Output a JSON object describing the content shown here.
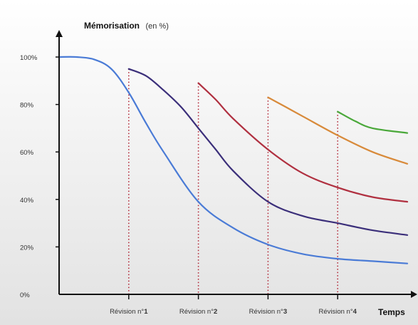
{
  "chart_data": {
    "type": "line",
    "ylabel": "Mémorisation",
    "ylabel_unit": "(en %)",
    "xlabel": "Temps",
    "ylim": [
      0,
      100
    ],
    "y_ticks": [
      "0%",
      "20%",
      "40%",
      "60%",
      "80%",
      "100%"
    ],
    "y_tick_values": [
      0,
      20,
      40,
      60,
      80,
      100
    ],
    "xlim": [
      0,
      5
    ],
    "grid": false,
    "revisions": [
      {
        "x": 1,
        "prefix": "Révision n°",
        "num": "1"
      },
      {
        "x": 2,
        "prefix": "Révision n°",
        "num": "2"
      },
      {
        "x": 3,
        "prefix": "Révision n°",
        "num": "3"
      },
      {
        "x": 4,
        "prefix": "Révision n°",
        "num": "4"
      }
    ],
    "series": [
      {
        "color": "#4a7bd6",
        "x": [
          0,
          0.25,
          0.5,
          0.75,
          1,
          1.25,
          1.5,
          2,
          2.5,
          3,
          3.5,
          4,
          4.5,
          5
        ],
        "y": [
          100,
          100,
          99,
          95,
          85,
          72,
          60,
          39,
          28,
          21,
          17,
          15,
          14,
          13
        ]
      },
      {
        "color": "#3b2f7a",
        "x": [
          1,
          1.25,
          1.5,
          1.75,
          2,
          2.25,
          2.5,
          3,
          3.5,
          4,
          4.5,
          5
        ],
        "y": [
          95,
          92,
          86,
          79,
          70,
          61,
          52,
          39,
          33,
          30,
          27,
          25
        ]
      },
      {
        "color": "#b03040",
        "x": [
          2,
          2.25,
          2.5,
          3,
          3.5,
          4,
          4.5,
          5
        ],
        "y": [
          89,
          82,
          74,
          61,
          51,
          45,
          41,
          39
        ]
      },
      {
        "color": "#d88a3a",
        "x": [
          3,
          3.25,
          3.5,
          4,
          4.5,
          5
        ],
        "y": [
          83,
          79,
          75,
          67,
          60,
          55
        ]
      },
      {
        "color": "#4aa83a",
        "x": [
          4,
          4.25,
          4.5,
          5
        ],
        "y": [
          77,
          73,
          70,
          68
        ]
      }
    ],
    "colors": {
      "axis": "#111111",
      "dotted": "#b02030",
      "background_top": "#ffffff",
      "background_bottom": "#e2e2e2"
    }
  }
}
